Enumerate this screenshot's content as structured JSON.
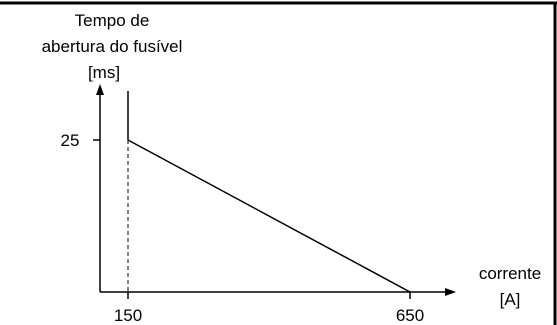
{
  "chart_data": {
    "type": "line",
    "ylabel_lines": [
      "Tempo de",
      "abertura do fusível",
      "[ms]"
    ],
    "xlabel_lines": [
      "corrente",
      "[A]"
    ],
    "x_ticks": [
      "150",
      "650"
    ],
    "y_ticks": [
      "25"
    ],
    "series": [
      {
        "x": [
          150,
          650
        ],
        "y": [
          25,
          0
        ]
      }
    ],
    "vertical_line_at_x": 150,
    "dashed_reference_at_x": 150
  }
}
